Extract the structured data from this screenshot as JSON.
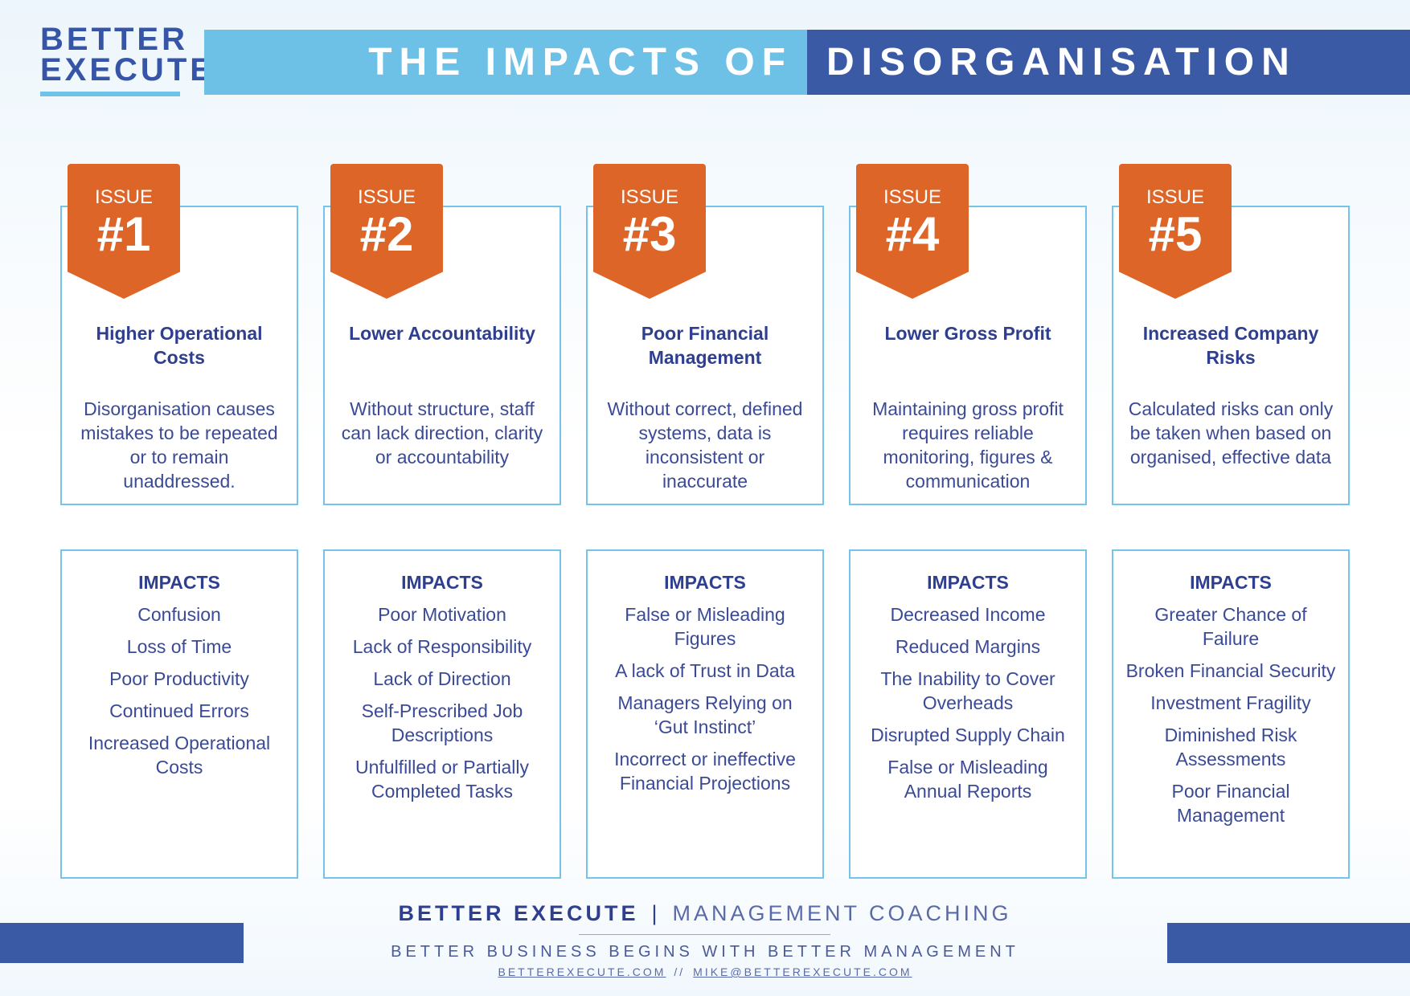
{
  "logo": {
    "line1": "BETTER",
    "line2": "EXECUTE"
  },
  "title": {
    "part1": "THE IMPACTS OF",
    "part2": "DISORGANISATION"
  },
  "issues": [
    {
      "label": "ISSUE",
      "number": "#1",
      "title": "Higher Operational Costs",
      "description": "Disorganisation causes mistakes to be repeated or to remain unaddressed.",
      "impacts_heading": "IMPACTS",
      "impacts": [
        "Confusion",
        "Loss of Time",
        "Poor Productivity",
        "Continued Errors",
        "Increased Operational Costs"
      ]
    },
    {
      "label": "ISSUE",
      "number": "#2",
      "title": "Lower Accountability",
      "description": "Without structure, staff can lack direction, clarity or accountability",
      "impacts_heading": "IMPACTS",
      "impacts": [
        "Poor Motivation",
        "Lack of Responsibility",
        "Lack of Direction",
        "Self-Prescribed Job Descriptions",
        "Unfulfilled or Partially Completed Tasks"
      ]
    },
    {
      "label": "ISSUE",
      "number": "#3",
      "title": "Poor Financial Management",
      "description": "Without correct, defined systems, data is inconsistent or inaccurate",
      "impacts_heading": "IMPACTS",
      "impacts": [
        "False or Misleading Figures",
        "A lack of Trust in Data",
        "Managers Relying on ‘Gut Instinct’",
        "Incorrect or ineffective Financial Projections"
      ]
    },
    {
      "label": "ISSUE",
      "number": "#4",
      "title": "Lower Gross Profit",
      "description": "Maintaining gross profit requires reliable monitoring, figures & communication",
      "impacts_heading": "IMPACTS",
      "impacts": [
        "Decreased Income",
        "Reduced Margins",
        "The Inability to Cover Overheads",
        "Disrupted Supply Chain",
        "False or Misleading Annual Reports"
      ]
    },
    {
      "label": "ISSUE",
      "number": "#5",
      "title": "Increased Company Risks",
      "description": "Calculated risks can only be taken when based on organised, effective data",
      "impacts_heading": "IMPACTS",
      "impacts": [
        "Greater Chance of Failure",
        "Broken Financial Security",
        "Investment Fragility",
        "Diminished Risk Assessments",
        "Poor Financial Management"
      ]
    }
  ],
  "footer": {
    "brand": "BETTER EXECUTE",
    "separator": "|",
    "subtitle": "MANAGEMENT COACHING",
    "tagline": "BETTER BUSINESS BEGINS WITH BETTER MANAGEMENT",
    "website": "BETTEREXECUTE.COM",
    "link_separator": "//",
    "email": "MIKE@BETTEREXECUTE.COM"
  },
  "colors": {
    "accent_orange": "#de6528",
    "dark_blue": "#3a5aa6",
    "light_blue": "#6ec1e6",
    "text_blue": "#2f3f8f"
  }
}
